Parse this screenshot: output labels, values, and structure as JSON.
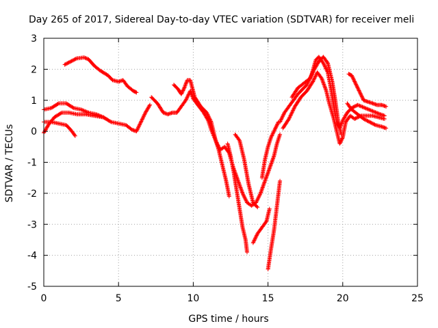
{
  "chart_data": {
    "type": "scatter",
    "title": "Day 265 of 2017, Sidereal Day-to-day VTEC variation (SDTVAR) for receiver meli",
    "xlabel": "GPS time / hours",
    "ylabel": "SDTVAR / TECUs",
    "xlim": [
      0,
      25
    ],
    "ylim": [
      -5,
      3
    ],
    "x_ticks": [
      {
        "value": 0,
        "label": "0"
      },
      {
        "value": 5,
        "label": "5"
      },
      {
        "value": 10,
        "label": "10"
      },
      {
        "value": 15,
        "label": "15"
      },
      {
        "value": 20,
        "label": "20"
      },
      {
        "value": 25,
        "label": "25"
      }
    ],
    "y_ticks": [
      {
        "value": -5,
        "label": "-5"
      },
      {
        "value": -4,
        "label": "-4"
      },
      {
        "value": -3,
        "label": "-3"
      },
      {
        "value": -2,
        "label": "-2"
      },
      {
        "value": -1,
        "label": "-1"
      },
      {
        "value": 0,
        "label": "0"
      },
      {
        "value": 1,
        "label": "1"
      },
      {
        "value": 2,
        "label": "2"
      },
      {
        "value": 3,
        "label": "3"
      }
    ],
    "grid": true,
    "marker": "+",
    "color": "#ff0000",
    "series": [
      {
        "points": [
          [
            1.4,
            2.15
          ],
          [
            1.8,
            2.25
          ],
          [
            2.2,
            2.35
          ],
          [
            2.7,
            2.38
          ],
          [
            3.0,
            2.32
          ],
          [
            3.4,
            2.1
          ],
          [
            3.8,
            1.95
          ],
          [
            4.3,
            1.8
          ],
          [
            4.6,
            1.65
          ],
          [
            5.0,
            1.6
          ],
          [
            5.3,
            1.65
          ],
          [
            5.6,
            1.45
          ],
          [
            6.0,
            1.3
          ],
          [
            6.2,
            1.25
          ]
        ]
      },
      {
        "points": [
          [
            0.0,
            0.7
          ],
          [
            0.5,
            0.75
          ],
          [
            1.0,
            0.9
          ],
          [
            1.5,
            0.9
          ],
          [
            2.0,
            0.75
          ],
          [
            2.5,
            0.7
          ],
          [
            3.0,
            0.6
          ],
          [
            3.5,
            0.55
          ],
          [
            4.0,
            0.45
          ],
          [
            4.5,
            0.3
          ],
          [
            5.0,
            0.25
          ],
          [
            5.5,
            0.2
          ],
          [
            5.9,
            0.05
          ],
          [
            6.2,
            0.0
          ],
          [
            6.5,
            0.3
          ],
          [
            6.8,
            0.6
          ],
          [
            7.1,
            0.85
          ]
        ]
      },
      {
        "points": [
          [
            0.0,
            0.3
          ],
          [
            0.5,
            0.3
          ],
          [
            1.0,
            0.25
          ],
          [
            1.5,
            0.2
          ],
          [
            1.8,
            0.05
          ],
          [
            2.1,
            -0.15
          ]
        ]
      },
      {
        "points": [
          [
            0.0,
            -0.05
          ],
          [
            0.3,
            0.2
          ],
          [
            0.7,
            0.45
          ],
          [
            1.2,
            0.6
          ],
          [
            1.7,
            0.6
          ],
          [
            2.2,
            0.55
          ],
          [
            2.8,
            0.55
          ],
          [
            3.4,
            0.5
          ],
          [
            4.0,
            0.45
          ]
        ]
      },
      {
        "points": [
          [
            7.2,
            1.1
          ],
          [
            7.6,
            0.9
          ],
          [
            8.0,
            0.6
          ],
          [
            8.3,
            0.55
          ],
          [
            8.6,
            0.6
          ],
          [
            8.9,
            0.6
          ],
          [
            9.2,
            0.8
          ],
          [
            9.5,
            1.0
          ],
          [
            9.8,
            1.3
          ],
          [
            10.0,
            1.05
          ],
          [
            10.3,
            0.85
          ],
          [
            10.7,
            0.6
          ],
          [
            11.0,
            0.35
          ],
          [
            11.2,
            0.05
          ],
          [
            11.5,
            -0.3
          ],
          [
            11.7,
            -0.6
          ],
          [
            11.9,
            -1.0
          ],
          [
            12.0,
            -1.2
          ],
          [
            12.2,
            -1.6
          ],
          [
            12.4,
            -2.1
          ]
        ]
      },
      {
        "points": [
          [
            8.7,
            1.5
          ],
          [
            9.0,
            1.35
          ],
          [
            9.2,
            1.2
          ],
          [
            9.4,
            1.4
          ],
          [
            9.6,
            1.65
          ],
          [
            9.8,
            1.65
          ],
          [
            10.1,
            1.1
          ],
          [
            10.5,
            0.8
          ],
          [
            10.9,
            0.6
          ],
          [
            11.2,
            0.3
          ],
          [
            11.5,
            -0.3
          ],
          [
            11.8,
            -0.6
          ],
          [
            12.1,
            -0.5
          ],
          [
            12.4,
            -0.7
          ],
          [
            12.7,
            -1.2
          ],
          [
            13.0,
            -1.6
          ],
          [
            13.3,
            -2.0
          ],
          [
            13.6,
            -2.3
          ],
          [
            13.9,
            -2.4
          ],
          [
            14.2,
            -2.3
          ],
          [
            14.5,
            -2.0
          ],
          [
            14.8,
            -1.6
          ],
          [
            15.1,
            -1.2
          ],
          [
            15.4,
            -0.8
          ],
          [
            15.6,
            -0.4
          ],
          [
            15.8,
            -0.1
          ]
        ]
      },
      {
        "points": [
          [
            12.3,
            -0.4
          ],
          [
            12.5,
            -0.8
          ],
          [
            12.7,
            -1.3
          ],
          [
            12.9,
            -1.9
          ],
          [
            13.1,
            -2.5
          ],
          [
            13.3,
            -3.1
          ],
          [
            13.5,
            -3.5
          ],
          [
            13.6,
            -3.9
          ]
        ]
      },
      {
        "points": [
          [
            12.8,
            -0.1
          ],
          [
            13.1,
            -0.3
          ],
          [
            13.4,
            -0.9
          ],
          [
            13.7,
            -1.7
          ],
          [
            14.0,
            -2.3
          ],
          [
            14.3,
            -2.45
          ]
        ]
      },
      {
        "points": [
          [
            14.0,
            -3.6
          ],
          [
            14.3,
            -3.3
          ],
          [
            14.6,
            -3.1
          ],
          [
            14.9,
            -2.9
          ],
          [
            15.1,
            -2.5
          ]
        ]
      },
      {
        "points": [
          [
            15.0,
            -4.45
          ],
          [
            15.2,
            -3.8
          ],
          [
            15.4,
            -3.2
          ],
          [
            15.6,
            -2.4
          ],
          [
            15.8,
            -1.6
          ]
        ]
      },
      {
        "points": [
          [
            14.6,
            -1.5
          ],
          [
            14.8,
            -0.9
          ],
          [
            15.0,
            -0.5
          ],
          [
            15.2,
            -0.2
          ],
          [
            15.5,
            0.1
          ],
          [
            15.7,
            0.3
          ]
        ]
      },
      {
        "points": [
          [
            15.8,
            0.3
          ],
          [
            16.1,
            0.6
          ],
          [
            16.4,
            0.8
          ],
          [
            16.7,
            1.0
          ],
          [
            17.0,
            1.2
          ],
          [
            17.3,
            1.35
          ],
          [
            17.6,
            1.5
          ],
          [
            17.9,
            1.8
          ],
          [
            18.2,
            2.3
          ],
          [
            18.4,
            2.4
          ],
          [
            18.7,
            2.2
          ],
          [
            19.0,
            1.9
          ],
          [
            19.2,
            1.4
          ],
          [
            19.4,
            0.8
          ],
          [
            19.6,
            0.3
          ],
          [
            19.8,
            0.1
          ],
          [
            20.0,
            0.35
          ],
          [
            20.3,
            0.6
          ],
          [
            20.6,
            0.75
          ],
          [
            21.0,
            0.85
          ],
          [
            21.5,
            0.75
          ],
          [
            22.0,
            0.65
          ],
          [
            22.5,
            0.55
          ],
          [
            22.8,
            0.5
          ]
        ]
      },
      {
        "points": [
          [
            16.0,
            0.1
          ],
          [
            16.4,
            0.4
          ],
          [
            16.8,
            0.8
          ],
          [
            17.2,
            1.1
          ],
          [
            17.6,
            1.3
          ],
          [
            18.0,
            1.6
          ],
          [
            18.3,
            1.9
          ],
          [
            18.6,
            1.7
          ],
          [
            18.9,
            1.3
          ],
          [
            19.1,
            0.9
          ],
          [
            19.4,
            0.4
          ],
          [
            19.6,
            0.0
          ],
          [
            19.8,
            -0.4
          ],
          [
            20.0,
            -0.2
          ],
          [
            20.2,
            0.3
          ],
          [
            20.5,
            0.5
          ],
          [
            20.8,
            0.4
          ],
          [
            21.2,
            0.5
          ],
          [
            21.6,
            0.5
          ],
          [
            22.0,
            0.5
          ],
          [
            22.4,
            0.45
          ],
          [
            22.8,
            0.4
          ]
        ]
      },
      {
        "points": [
          [
            16.6,
            1.1
          ],
          [
            17.0,
            1.4
          ],
          [
            17.4,
            1.55
          ],
          [
            17.8,
            1.7
          ],
          [
            18.1,
            2.0
          ],
          [
            18.4,
            2.25
          ],
          [
            18.7,
            2.4
          ],
          [
            19.0,
            2.2
          ],
          [
            19.3,
            1.6
          ],
          [
            19.5,
            1.0
          ],
          [
            19.7,
            0.3
          ],
          [
            19.9,
            -0.1
          ]
        ]
      },
      {
        "points": [
          [
            20.4,
            1.85
          ],
          [
            20.6,
            1.8
          ],
          [
            20.8,
            1.6
          ],
          [
            21.0,
            1.4
          ],
          [
            21.2,
            1.2
          ],
          [
            21.4,
            1.0
          ],
          [
            21.7,
            0.95
          ],
          [
            22.0,
            0.9
          ],
          [
            22.3,
            0.85
          ],
          [
            22.6,
            0.85
          ],
          [
            22.9,
            0.8
          ]
        ]
      },
      {
        "points": [
          [
            20.3,
            0.9
          ],
          [
            20.6,
            0.7
          ],
          [
            21.0,
            0.55
          ],
          [
            21.4,
            0.4
          ],
          [
            21.8,
            0.3
          ],
          [
            22.2,
            0.2
          ],
          [
            22.6,
            0.15
          ],
          [
            22.9,
            0.1
          ]
        ]
      }
    ]
  }
}
